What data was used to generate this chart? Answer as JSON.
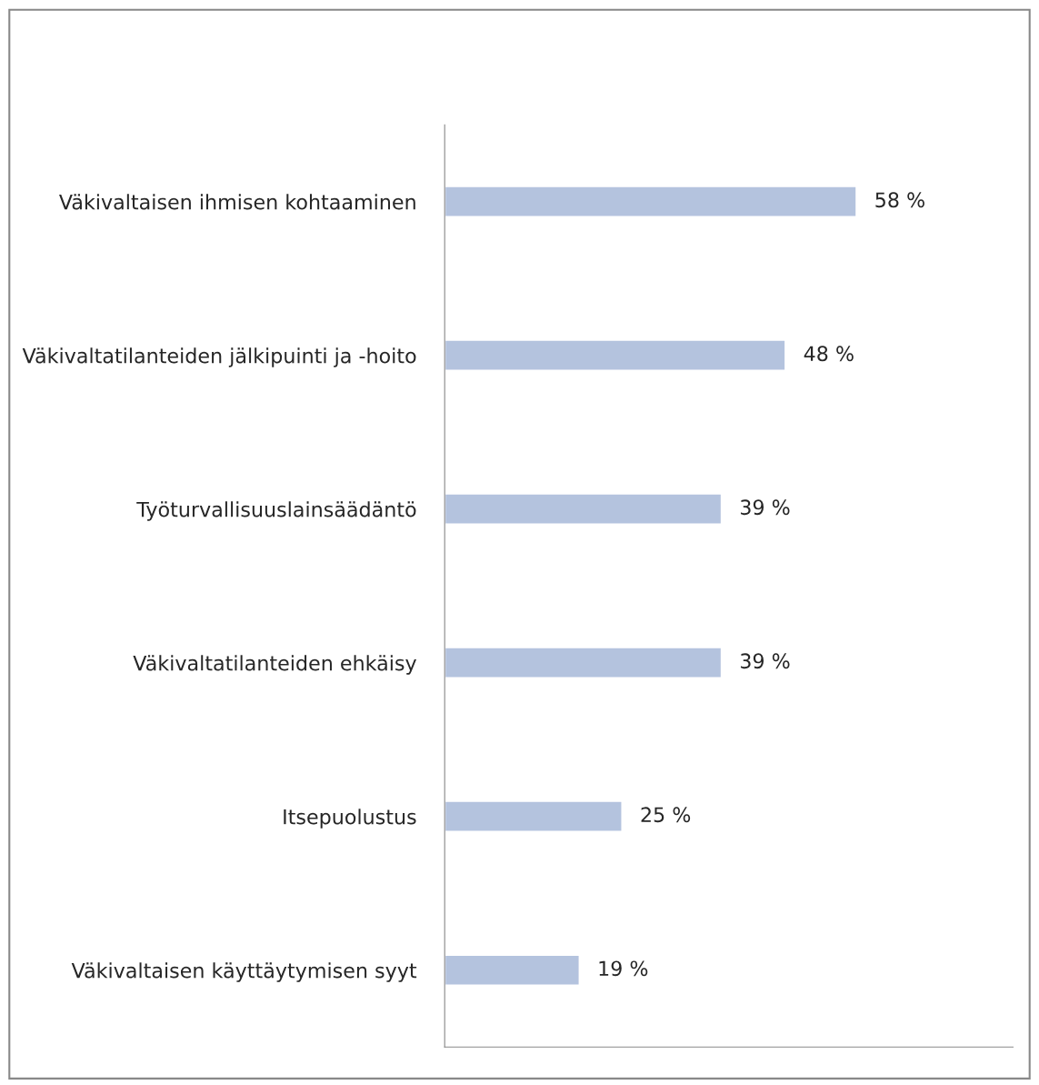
{
  "chart_data": {
    "type": "bar",
    "orientation": "horizontal",
    "categories": [
      "Väkivaltaisen ihmisen kohtaaminen",
      "Väkivaltatilanteiden jälkipuinti ja -hoito",
      "Työturvallisuuslainsäädäntö",
      "Väkivaltatilanteiden ehkäisy",
      "Itsepuolustus",
      "Väkivaltaisen käyttäytymisen syyt"
    ],
    "values": [
      58,
      48,
      39,
      39,
      25,
      19
    ],
    "value_labels": [
      "58 %",
      "48 %",
      "39 %",
      "39 %",
      "25 %",
      "19 %"
    ],
    "color": "#b4c3de",
    "grid": false,
    "legend": false,
    "tick_labels": "y"
  }
}
